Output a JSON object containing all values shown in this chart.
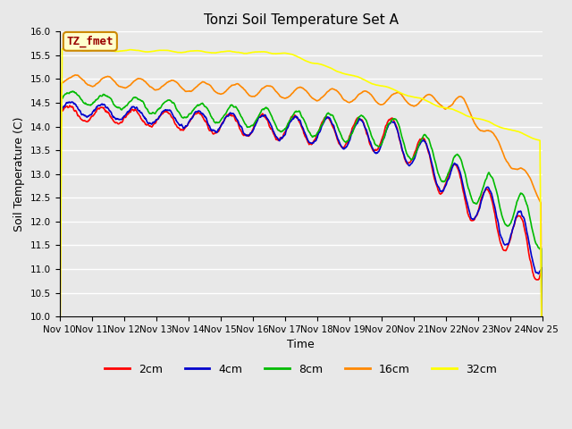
{
  "title": "Tonzi Soil Temperature Set A",
  "xlabel": "Time",
  "ylabel": "Soil Temperature (C)",
  "ylim": [
    10.0,
    16.0
  ],
  "yticks": [
    10.0,
    10.5,
    11.0,
    11.5,
    12.0,
    12.5,
    13.0,
    13.5,
    14.0,
    14.5,
    15.0,
    15.5,
    16.0
  ],
  "xtick_labels": [
    "Nov 10",
    "Nov 11",
    "Nov 12",
    "Nov 13",
    "Nov 14",
    "Nov 15",
    "Nov 16",
    "Nov 17",
    "Nov 18",
    "Nov 19",
    "Nov 20",
    "Nov 21",
    "Nov 22",
    "Nov 23",
    "Nov 24",
    "Nov 25"
  ],
  "series": {
    "2cm": {
      "color": "#ff0000",
      "lw": 1.2
    },
    "4cm": {
      "color": "#0000cc",
      "lw": 1.2
    },
    "8cm": {
      "color": "#00bb00",
      "lw": 1.2
    },
    "16cm": {
      "color": "#ff8800",
      "lw": 1.2
    },
    "32cm": {
      "color": "#ffff00",
      "lw": 1.2
    }
  },
  "legend_labels": [
    "2cm",
    "4cm",
    "8cm",
    "16cm",
    "32cm"
  ],
  "legend_colors": [
    "#ff0000",
    "#0000cc",
    "#00bb00",
    "#ff8800",
    "#ffff00"
  ],
  "annotation_text": "TZ_fmet",
  "annotation_bbox": {
    "boxstyle": "round,pad=0.3",
    "facecolor": "#ffffcc",
    "edgecolor": "#cc8800"
  },
  "annotation_color": "#990000",
  "fig_facecolor": "#e8e8e8",
  "plot_bg_color": "#e8e8e8",
  "n_points": 1080,
  "days": 15
}
